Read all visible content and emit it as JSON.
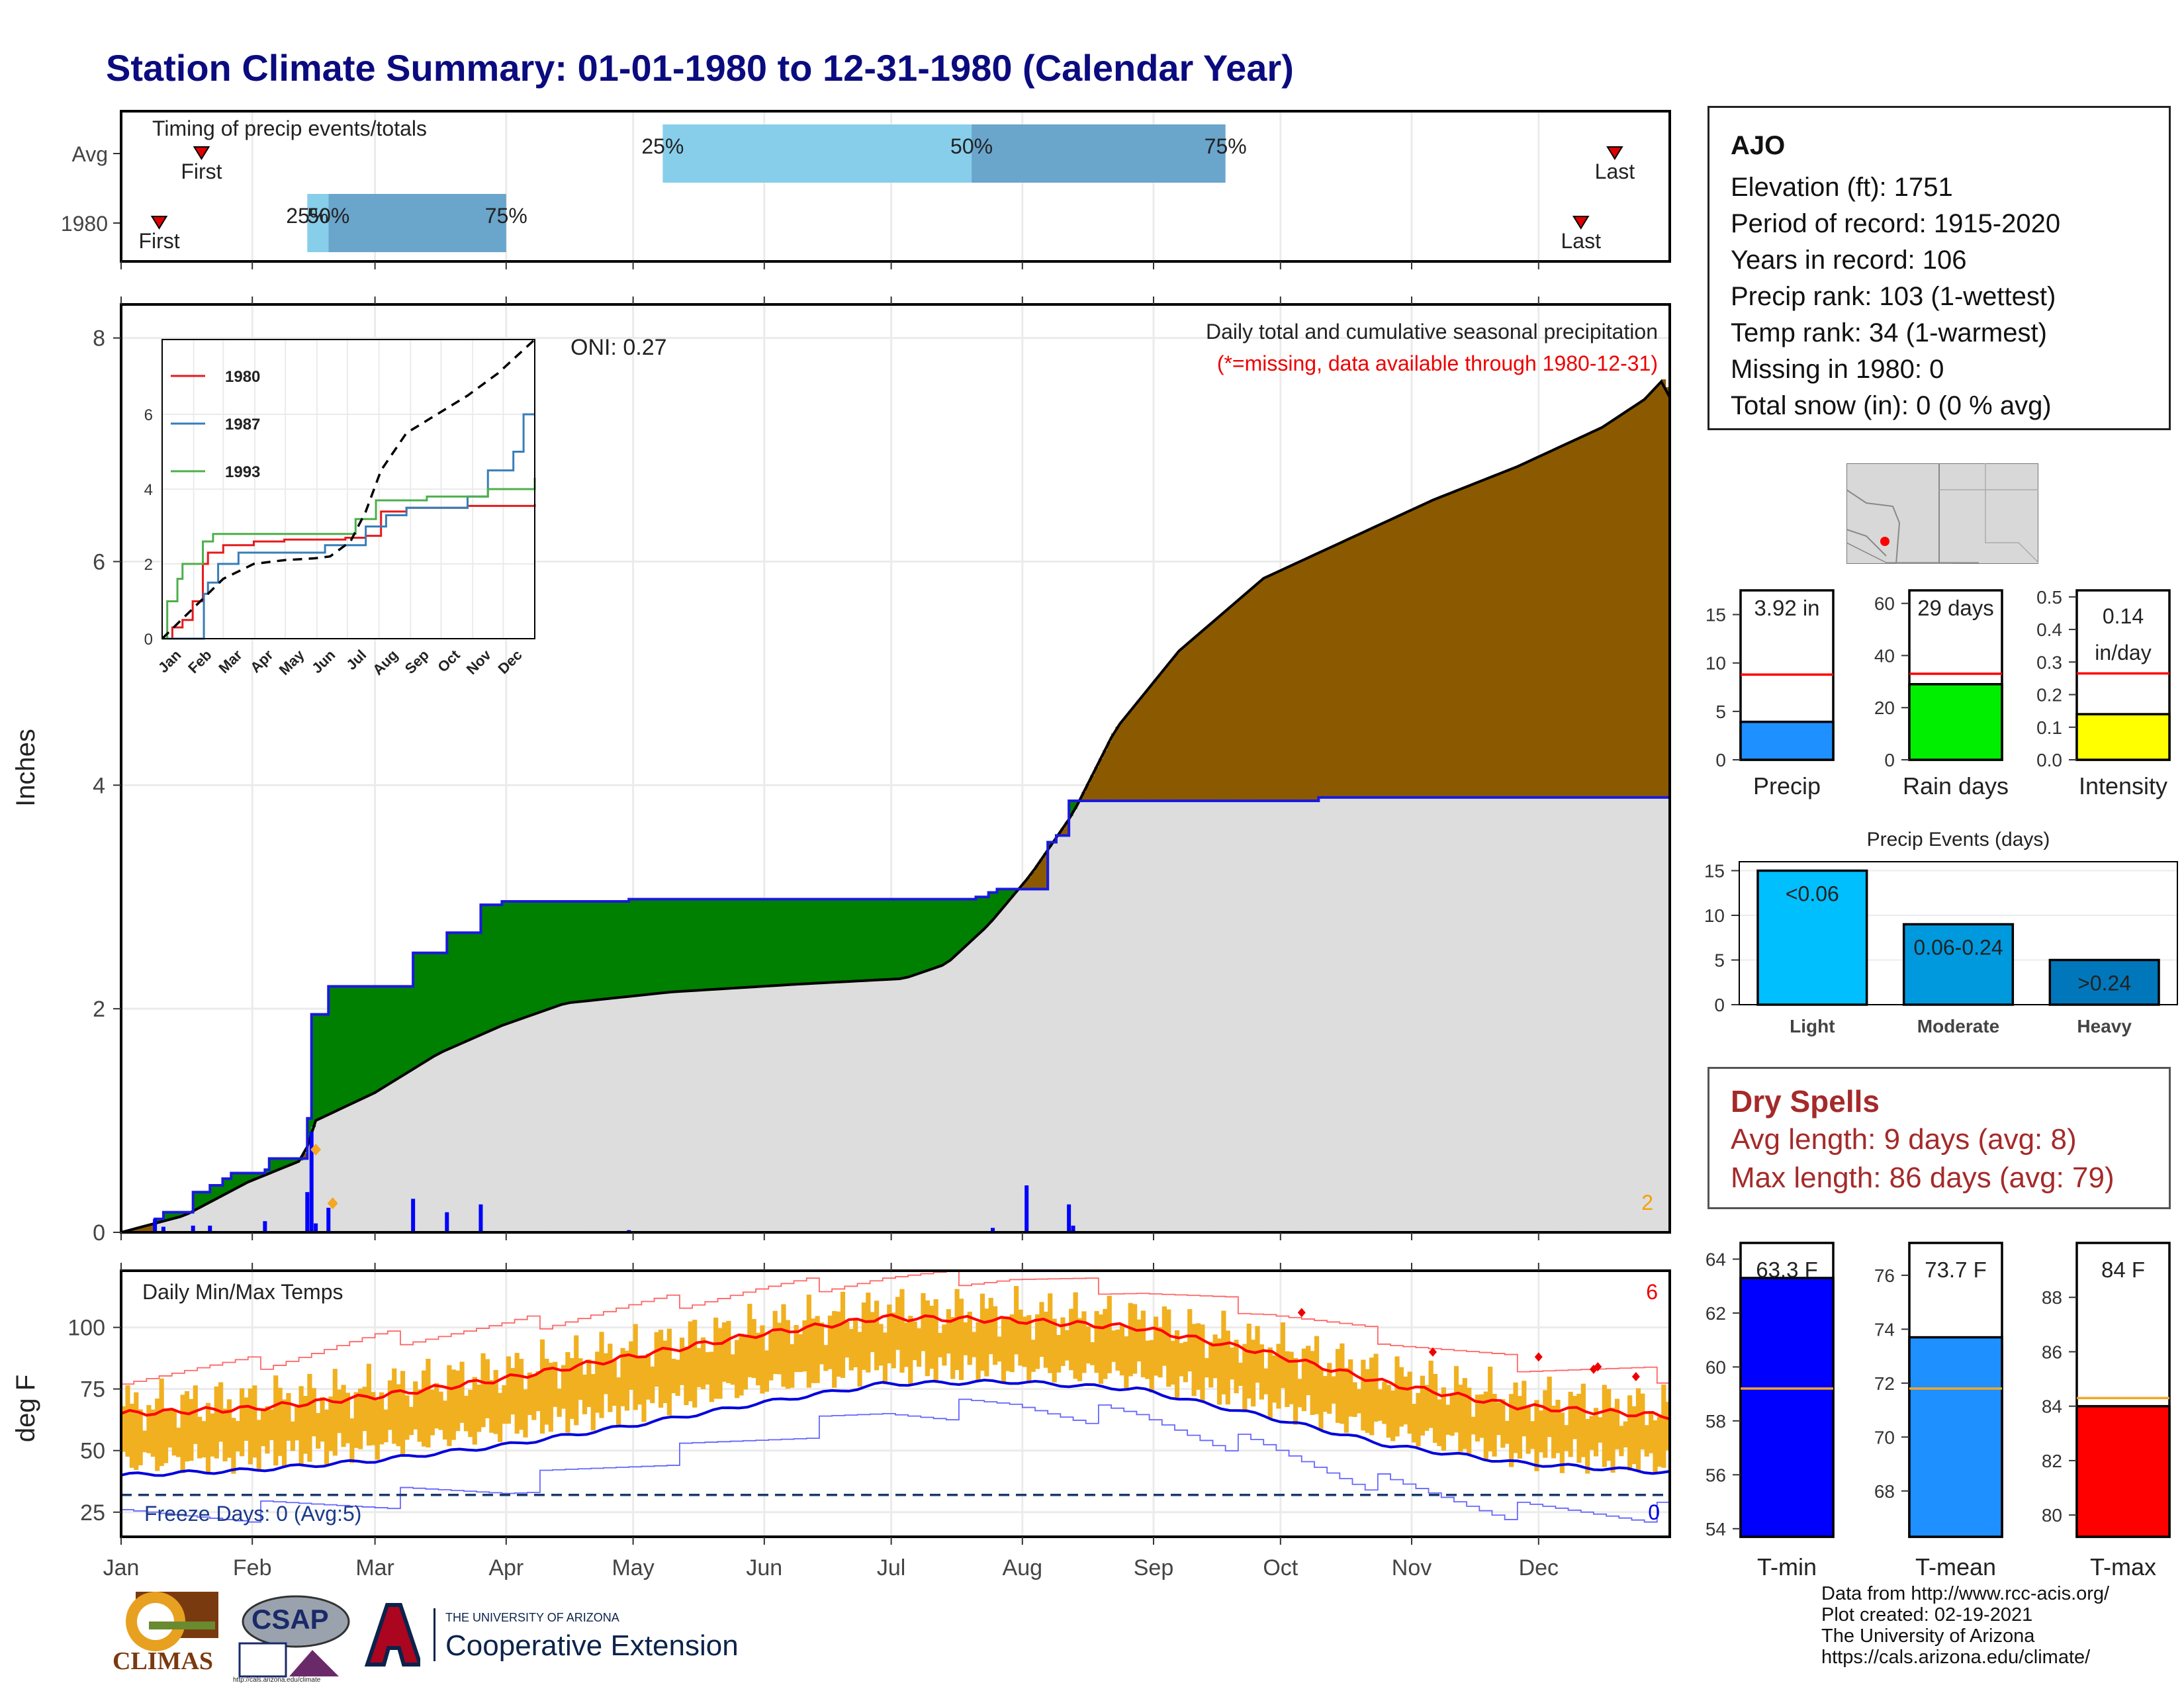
{
  "title": "Station Climate Summary: 01-01-1980 to 12-31-1980 (Calendar Year)",
  "station": {
    "name": "AJO",
    "lines": [
      "Elevation (ft): 1751",
      "Period of record: 1915-2020",
      "Years in record: 106",
      "Precip rank: 103 (1-wettest)",
      "Temp rank: 34 (1-warmest)",
      "Missing in 1980: 0",
      "Total snow (in): 0 (0 % avg)"
    ]
  },
  "dry_spells": {
    "heading": "Dry Spells",
    "avg": "Avg length: 9 days (avg: 8)",
    "max": "Max length: 86 days (avg: 79)"
  },
  "footer": [
    "Data from http://www.rcc-acis.org/",
    "Plot created: 02-19-2021",
    "The University of Arizona",
    "https://cals.arizona.edu/climate/"
  ],
  "logos": {
    "climas": "CLIMAS",
    "csap": "CSAP",
    "csap_url": "http://cals.arizona.edu/climate",
    "ua_small": "THE UNIVERSITY OF ARIZONA",
    "ua_big": "Cooperative Extension"
  },
  "colors": {
    "title": "#0b0b80",
    "cum_1980": "#1a1adc",
    "cum_avg": "#000000",
    "above": "#008000",
    "below": "#8b5a00",
    "avg_fill": "#dddddd",
    "tmax": "#ff0000",
    "tmin": "#0000dd",
    "daily_bar": "#f0b020",
    "dry_spell": "#a52a2a"
  },
  "chart_data": [
    {
      "type": "bar",
      "name": "timing",
      "title": "Timing of precip events/totals",
      "categories": [
        "Avg",
        "1980"
      ],
      "months": [
        "Jan",
        "Feb",
        "Mar",
        "Apr",
        "May",
        "Jun",
        "Jul",
        "Aug",
        "Sep",
        "Oct",
        "Nov",
        "Dec"
      ],
      "rows": [
        {
          "label": "Avg",
          "first": 19,
          "p25": 128,
          "p50": 201,
          "p75": 261,
          "last": 353,
          "labels": {
            "first": "First",
            "p25": "25%",
            "p50": "50%",
            "p75": "75%",
            "last": "Last"
          }
        },
        {
          "label": "1980",
          "first": 9,
          "p25": 44,
          "p50": 49,
          "p75": 91,
          "last": 345,
          "labels": {
            "first": "First",
            "p25": "25%",
            "p50": "50%",
            "p75": "75%",
            "last": "Last"
          }
        }
      ]
    },
    {
      "type": "area",
      "name": "cumulative_precip",
      "title": "Daily total and cumulative seasonal precipitation",
      "subtitle": "(*=missing, data available through 1980-12-31)",
      "annotation": "ONI: 0.27",
      "corner_count": "2",
      "ylabel": "Inches",
      "ylim": [
        0,
        8.3
      ],
      "yticks": [
        0,
        2,
        4,
        6,
        8
      ],
      "cum_1980": [
        [
          0,
          0
        ],
        [
          8,
          0.12
        ],
        [
          10,
          0.18
        ],
        [
          17,
          0.36
        ],
        [
          21,
          0.42
        ],
        [
          24,
          0.48
        ],
        [
          26,
          0.53
        ],
        [
          34,
          0.56
        ],
        [
          35,
          0.66
        ],
        [
          43,
          0.66
        ],
        [
          44,
          1.02
        ],
        [
          45,
          1.95
        ],
        [
          49,
          2.2
        ],
        [
          69,
          2.5
        ],
        [
          77,
          2.68
        ],
        [
          85,
          2.93
        ],
        [
          90,
          2.96
        ],
        [
          120,
          2.98
        ],
        [
          202,
          3.0
        ],
        [
          205,
          3.04
        ],
        [
          207,
          3.07
        ],
        [
          219,
          3.49
        ],
        [
          221,
          3.55
        ],
        [
          224,
          3.86
        ],
        [
          283,
          3.89
        ],
        [
          366,
          3.91
        ]
      ],
      "cum_avg": [
        [
          0,
          0
        ],
        [
          15,
          0.15
        ],
        [
          30,
          0.45
        ],
        [
          43,
          0.65
        ],
        [
          46,
          1.0
        ],
        [
          60,
          1.25
        ],
        [
          75,
          1.6
        ],
        [
          90,
          1.85
        ],
        [
          105,
          2.05
        ],
        [
          130,
          2.15
        ],
        [
          160,
          2.22
        ],
        [
          185,
          2.27
        ],
        [
          195,
          2.4
        ],
        [
          205,
          2.75
        ],
        [
          215,
          3.2
        ],
        [
          225,
          3.75
        ],
        [
          235,
          4.5
        ],
        [
          250,
          5.2
        ],
        [
          270,
          5.85
        ],
        [
          290,
          6.2
        ],
        [
          310,
          6.55
        ],
        [
          330,
          6.85
        ],
        [
          350,
          7.2
        ],
        [
          360,
          7.45
        ],
        [
          365,
          7.65
        ],
        [
          366,
          7.47
        ]
      ],
      "daily": [
        [
          8,
          0.12
        ],
        [
          10,
          0.05
        ],
        [
          17,
          0.06
        ],
        [
          21,
          0.06
        ],
        [
          34,
          0.1
        ],
        [
          44,
          0.36
        ],
        [
          45,
          0.9
        ],
        [
          46,
          0.08
        ],
        [
          49,
          0.22
        ],
        [
          69,
          0.3
        ],
        [
          77,
          0.18
        ],
        [
          85,
          0.25
        ],
        [
          120,
          0.02
        ],
        [
          206,
          0.04
        ],
        [
          214,
          0.42
        ],
        [
          224,
          0.25
        ],
        [
          225,
          0.06
        ]
      ],
      "markers": [
        [
          46,
          0.74
        ],
        [
          50,
          0.26
        ]
      ],
      "inset": {
        "yticks": [
          0,
          2,
          4,
          6
        ],
        "ylim": [
          0,
          8
        ],
        "months": [
          "Jan",
          "Feb",
          "Mar",
          "Apr",
          "May",
          "Jun",
          "Jul",
          "Aug",
          "Sep",
          "Oct",
          "Nov",
          "Dec"
        ],
        "series": [
          {
            "name": "1980",
            "color": "#e41a1c",
            "values": [
              [
                0,
                0
              ],
              [
                10,
                0.3
              ],
              [
                20,
                0.5
              ],
              [
                30,
                1.0
              ],
              [
                40,
                2.0
              ],
              [
                45,
                2.3
              ],
              [
                60,
                2.5
              ],
              [
                90,
                2.6
              ],
              [
                120,
                2.65
              ],
              [
                180,
                2.7
              ],
              [
                200,
                2.75
              ],
              [
                215,
                3.4
              ],
              [
                240,
                3.5
              ],
              [
                300,
                3.55
              ],
              [
                366,
                3.6
              ]
            ]
          },
          {
            "name": "1987",
            "color": "#377eb8",
            "values": [
              [
                0,
                0
              ],
              [
                40,
                0
              ],
              [
                41,
                1.2
              ],
              [
                45,
                1.5
              ],
              [
                55,
                2.0
              ],
              [
                75,
                2.3
              ],
              [
                120,
                2.3
              ],
              [
                160,
                2.5
              ],
              [
                190,
                2.5
              ],
              [
                200,
                3.0
              ],
              [
                220,
                3.3
              ],
              [
                240,
                3.5
              ],
              [
                300,
                3.8
              ],
              [
                320,
                4.5
              ],
              [
                345,
                5.0
              ],
              [
                355,
                6.0
              ],
              [
                366,
                6.0
              ]
            ]
          },
          {
            "name": "1993",
            "color": "#4daf4a",
            "values": [
              [
                0,
                0
              ],
              [
                5,
                1.0
              ],
              [
                15,
                1.6
              ],
              [
                20,
                2.0
              ],
              [
                40,
                2.6
              ],
              [
                50,
                2.8
              ],
              [
                100,
                2.8
              ],
              [
                180,
                2.8
              ],
              [
                190,
                3.2
              ],
              [
                210,
                3.7
              ],
              [
                260,
                3.8
              ],
              [
                320,
                4.0
              ],
              [
                366,
                4.3
              ]
            ]
          },
          {
            "name": "avg",
            "color": "#000000",
            "values": [
              [
                0,
                0
              ],
              [
                30,
                0.8
              ],
              [
                60,
                1.6
              ],
              [
                90,
                2.0
              ],
              [
                120,
                2.1
              ],
              [
                150,
                2.15
              ],
              [
                165,
                2.2
              ],
              [
                185,
                2.6
              ],
              [
                200,
                3.4
              ],
              [
                215,
                4.5
              ],
              [
                240,
                5.5
              ],
              [
                270,
                6.0
              ],
              [
                300,
                6.5
              ],
              [
                330,
                7.1
              ],
              [
                366,
                8.0
              ]
            ]
          }
        ]
      }
    },
    {
      "type": "line",
      "name": "daily_temps",
      "title": "Daily Min/Max Temps",
      "ylabel": "deg F",
      "ylim": [
        15,
        123
      ],
      "yticks": [
        25,
        50,
        75,
        100
      ],
      "corner_count_max": "6",
      "corner_count_min": "0",
      "freeze_label": "Freeze Days: 0 (Avg:5)",
      "freeze_line": 32,
      "months": [
        "Jan",
        "Feb",
        "Mar",
        "Apr",
        "May",
        "Jun",
        "Jul",
        "Aug",
        "Sep",
        "Oct",
        "Nov",
        "Dec"
      ],
      "avg_max": [
        [
          0,
          65
        ],
        [
          30,
          67
        ],
        [
          60,
          72
        ],
        [
          90,
          79
        ],
        [
          120,
          88
        ],
        [
          150,
          97
        ],
        [
          180,
          104
        ],
        [
          210,
          103
        ],
        [
          240,
          100
        ],
        [
          270,
          90
        ],
        [
          300,
          77
        ],
        [
          330,
          68
        ],
        [
          366,
          64
        ]
      ],
      "avg_min": [
        [
          0,
          40
        ],
        [
          30,
          42
        ],
        [
          60,
          46
        ],
        [
          90,
          52
        ],
        [
          120,
          60
        ],
        [
          150,
          69
        ],
        [
          180,
          77
        ],
        [
          210,
          78
        ],
        [
          240,
          75
        ],
        [
          270,
          64
        ],
        [
          300,
          52
        ],
        [
          330,
          45
        ],
        [
          366,
          41
        ]
      ],
      "rec_max": [
        [
          0,
          80
        ],
        [
          30,
          85
        ],
        [
          60,
          95
        ],
        [
          90,
          100
        ],
        [
          120,
          108
        ],
        [
          150,
          115
        ],
        [
          180,
          120
        ],
        [
          210,
          120
        ],
        [
          240,
          115
        ],
        [
          270,
          107
        ],
        [
          300,
          95
        ],
        [
          330,
          85
        ],
        [
          366,
          80
        ]
      ],
      "rec_min": [
        [
          0,
          22
        ],
        [
          30,
          25
        ],
        [
          60,
          30
        ],
        [
          90,
          35
        ],
        [
          120,
          45
        ],
        [
          150,
          55
        ],
        [
          180,
          65
        ],
        [
          210,
          68
        ],
        [
          240,
          63
        ],
        [
          270,
          50
        ],
        [
          300,
          35
        ],
        [
          330,
          25
        ],
        [
          366,
          25
        ]
      ],
      "record_markers": [
        [
          279,
          106
        ],
        [
          310,
          90
        ],
        [
          335,
          88
        ],
        [
          348,
          83
        ],
        [
          349,
          84
        ],
        [
          358,
          80
        ]
      ]
    },
    {
      "type": "bar",
      "name": "precip_summary",
      "categories": [
        "Precip",
        "Rain days",
        "Intensity"
      ],
      "values": [
        3.92,
        29,
        0.14
      ],
      "averages": [
        8.8,
        33,
        0.265
      ],
      "labels": [
        "3.92 in",
        "29 days",
        "0.14 in/day"
      ],
      "ylims": [
        [
          0,
          17.5
        ],
        [
          0,
          65
        ],
        [
          0,
          0.52
        ]
      ],
      "yticks": [
        [
          0,
          5,
          10,
          15
        ],
        [
          0,
          20,
          40,
          60
        ],
        [
          0.0,
          0.1,
          0.2,
          0.3,
          0.4,
          0.5
        ]
      ],
      "colors": [
        "#1e90ff",
        "#00ee00",
        "#ffff00"
      ]
    },
    {
      "type": "bar",
      "name": "precip_events",
      "title": "Precip Events (days)",
      "categories": [
        "Light",
        "Moderate",
        "Heavy"
      ],
      "values": [
        15,
        9,
        5
      ],
      "labels": [
        "<0.06",
        "0.06-0.24",
        ">0.24"
      ],
      "ylim": [
        0,
        16
      ],
      "yticks": [
        0,
        5,
        10,
        15
      ],
      "colors": [
        "#00bfff",
        "#0099dd",
        "#0077bb"
      ]
    },
    {
      "type": "bar",
      "name": "temp_summary",
      "categories": [
        "T-min",
        "T-mean",
        "T-max"
      ],
      "values": [
        63.3,
        73.7,
        84
      ],
      "averages": [
        59.2,
        71.8,
        84.3
      ],
      "labels": [
        "63.3 F",
        "73.7 F",
        "84 F"
      ],
      "ylims": [
        [
          53.7,
          64.6
        ],
        [
          66.3,
          77.2
        ],
        [
          79.2,
          90
        ]
      ],
      "yticks": [
        [
          54,
          56,
          58,
          60,
          62,
          64
        ],
        [
          68,
          70,
          72,
          74,
          76
        ],
        [
          80,
          82,
          84,
          86,
          88
        ]
      ],
      "colors": [
        "#0000ff",
        "#1e90ff",
        "#ff0000"
      ]
    }
  ]
}
